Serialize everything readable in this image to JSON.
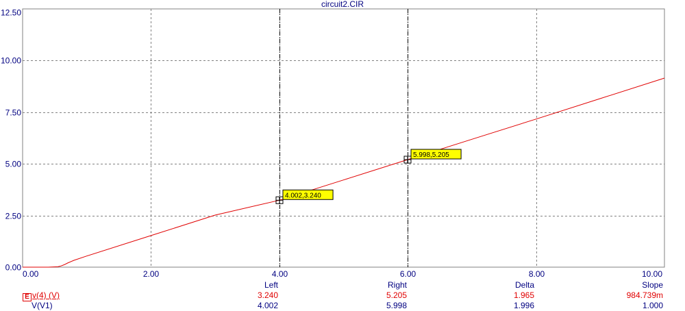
{
  "window_title": "circuit2.CIR",
  "colors": {
    "axis_text": "#000080",
    "trace": "#e00000",
    "grid": "#808080",
    "cursor_label_bg": "#ffff00"
  },
  "chart_data": {
    "type": "line",
    "title": "circuit2.CIR",
    "xlim": [
      0,
      10
    ],
    "ylim": [
      0,
      12.5
    ],
    "xticks": [
      "0.00",
      "2.00",
      "4.00",
      "6.00",
      "8.00",
      "10.00"
    ],
    "yticks": [
      "0.00",
      "2.50",
      "5.00",
      "7.50",
      "10.00",
      "12.50"
    ],
    "grid": true,
    "series": [
      {
        "name": "v(4) (V)",
        "x": [
          0,
          0.4,
          0.55,
          0.6,
          0.65,
          0.7,
          0.8,
          1.0,
          2.0,
          3.0,
          4.0,
          5.0,
          6.0,
          7.0,
          8.0,
          9.0,
          10.0
        ],
        "y": [
          0,
          0,
          0.02,
          0.06,
          0.12,
          0.2,
          0.33,
          0.54,
          1.53,
          2.52,
          3.24,
          4.22,
          5.205,
          6.19,
          7.17,
          8.16,
          9.15
        ]
      }
    ],
    "cursors": [
      {
        "x": 4.002,
        "y": 3.24,
        "label": "4.002,3.240"
      },
      {
        "x": 5.998,
        "y": 5.205,
        "label": "5.998,5.205"
      }
    ]
  },
  "table": {
    "headers": {
      "left": "Left",
      "right": "Right",
      "delta": "Delta",
      "slope": "Slope"
    },
    "rows": [
      {
        "expr": "v(4) (V)",
        "expr_icon": "E",
        "left": "3.240",
        "right": "5.205",
        "delta": "1.965",
        "slope": "984.739m"
      },
      {
        "expr": "V(V1)",
        "expr_icon": "",
        "left": "4.002",
        "right": "5.998",
        "delta": "1.996",
        "slope": "1.000"
      }
    ]
  }
}
